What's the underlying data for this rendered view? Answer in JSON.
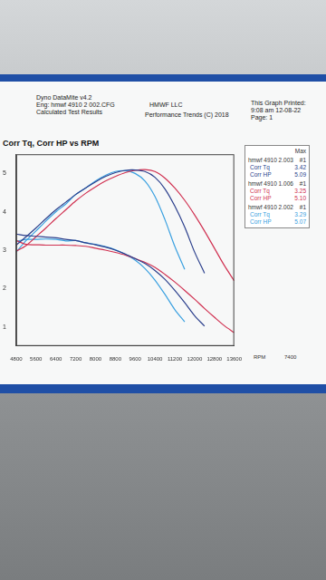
{
  "chart_data": {
    "type": "line",
    "title": "Corr Tq, Corr HP vs RPM",
    "header": {
      "left": [
        "Dyno DataMite v4.2",
        "Eng: hmwf 4910 2 002.CFG",
        "Calculated Test Results"
      ],
      "center": [
        "HMWF LLC",
        "Performance Trends (C) 2018"
      ],
      "right": [
        "This Graph Printed:",
        "9:08 am 12-08-22",
        "Page: 1"
      ]
    },
    "x_label": "RPM",
    "annotations": [
      "7400"
    ],
    "legend_header": "Max",
    "runs": [
      {
        "name": "hmwf 4910 2.003",
        "tag": "#1",
        "color": "#2b3f8c"
      },
      {
        "name": "hmwf 4910 1.006",
        "tag": "#1",
        "color": "#d03050"
      },
      {
        "name": "hmwf 4910 2.002",
        "tag": "#1",
        "color": "#3aa0e0"
      }
    ],
    "x": [
      4800,
      5200,
      5600,
      6000,
      6400,
      6800,
      7200,
      7600,
      8000,
      8400,
      8800,
      9200,
      9600,
      10000,
      10400,
      10800,
      11200,
      11600,
      12000,
      12400,
      12800,
      13200,
      13600
    ],
    "series": [
      {
        "name": "Corr Tq",
        "run": "hmwf 4910 2.003",
        "color": "#2b3f8c",
        "max": 3.42,
        "values": [
          3.42,
          3.38,
          3.36,
          3.34,
          3.32,
          3.28,
          3.25,
          3.19,
          3.14,
          3.08,
          3.0,
          2.9,
          2.78,
          2.65,
          2.47,
          2.24,
          1.95,
          1.63,
          1.29,
          1.02,
          null,
          null,
          null
        ]
      },
      {
        "name": "Corr HP",
        "run": "hmwf 4910 2.003",
        "color": "#2b3f8c",
        "max": 5.09,
        "values": [
          3.13,
          3.35,
          3.58,
          3.82,
          4.05,
          4.25,
          4.45,
          4.62,
          4.78,
          4.92,
          5.02,
          5.08,
          5.09,
          5.05,
          4.9,
          4.6,
          4.15,
          3.6,
          2.95,
          2.4,
          null,
          null,
          null
        ]
      },
      {
        "name": "Corr Tq",
        "run": "hmwf 4910 1.006",
        "color": "#d03050",
        "max": 3.25,
        "values": [
          3.25,
          3.15,
          3.14,
          3.13,
          3.13,
          3.13,
          3.12,
          3.1,
          3.05,
          3.0,
          2.94,
          2.87,
          2.78,
          2.68,
          2.55,
          2.37,
          2.17,
          1.95,
          1.72,
          1.48,
          1.25,
          1.03,
          0.85
        ]
      },
      {
        "name": "Corr HP",
        "run": "hmwf 4910 1.006",
        "color": "#d03050",
        "max": {
          "value": 5.1,
          "label": "5.10"
        },
        "values": [
          2.97,
          3.12,
          3.35,
          3.58,
          3.82,
          4.05,
          4.28,
          4.48,
          4.65,
          4.8,
          4.92,
          5.02,
          5.08,
          5.1,
          5.05,
          4.88,
          4.62,
          4.3,
          3.92,
          3.5,
          3.05,
          2.6,
          2.2
        ]
      },
      {
        "name": "Corr Tq",
        "run": "hmwf 4910 2.002",
        "color": "#3aa0e0",
        "max": 3.29,
        "values": [
          3.23,
          3.28,
          3.28,
          3.29,
          3.28,
          3.24,
          3.25,
          3.19,
          3.15,
          3.09,
          3.01,
          2.89,
          2.74,
          2.52,
          2.22,
          1.85,
          1.45,
          1.13,
          null,
          null,
          null,
          null,
          null
        ]
      },
      {
        "name": "Corr HP",
        "run": "hmwf 4910 2.002",
        "color": "#3aa0e0",
        "max": 5.07,
        "values": [
          2.95,
          3.25,
          3.5,
          3.76,
          4.0,
          4.2,
          4.45,
          4.62,
          4.8,
          4.95,
          5.05,
          5.07,
          5.0,
          4.8,
          4.4,
          3.8,
          3.1,
          2.5,
          null,
          null,
          null,
          null,
          null
        ]
      }
    ],
    "xlim": [
      4800,
      13600
    ],
    "xticks": [
      4800,
      5600,
      6400,
      7200,
      8000,
      8800,
      9600,
      10400,
      11200,
      12000,
      12800,
      13600
    ],
    "ylim": [
      0.5,
      5.5
    ],
    "yticks": [
      1,
      2,
      3,
      4,
      5
    ],
    "grid": false,
    "legend": "right"
  }
}
